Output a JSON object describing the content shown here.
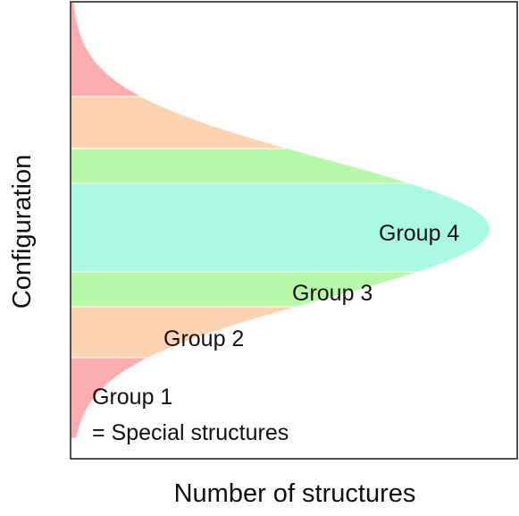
{
  "xlabel": "Number of structures",
  "ylabel": "Configuration",
  "groups": [
    {
      "label": "Group 1",
      "color": "#fcadb0"
    },
    {
      "label": "Group 2",
      "color": "#fdd3b2"
    },
    {
      "label": "Group 3",
      "color": "#b8f8a9"
    },
    {
      "label": "Group 4",
      "color": "#aaf9e2"
    }
  ],
  "group1_note": "= Special structures"
}
